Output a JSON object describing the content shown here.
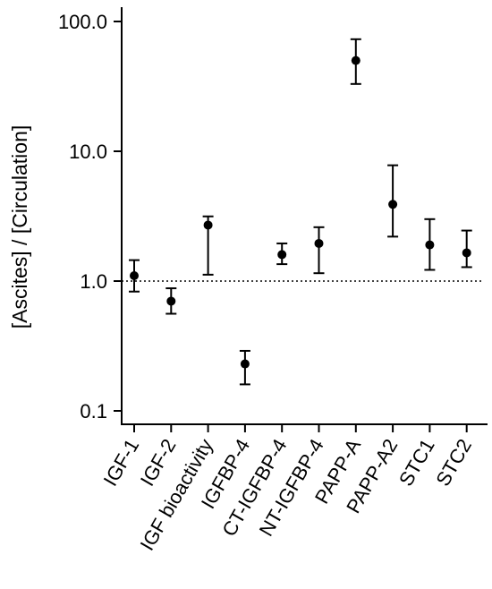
{
  "chart_data": {
    "type": "scatter",
    "title": "",
    "xlabel": "",
    "ylabel": "[Ascites] / [Circulation]",
    "yscale": "log",
    "ylim": [
      0.08,
      130
    ],
    "yticks": [
      0.1,
      1.0,
      10.0,
      100.0
    ],
    "ytick_labels": [
      "0.1",
      "1.0",
      "10.0",
      "100.0"
    ],
    "reference_line": {
      "y": 1.0,
      "style": "dotted"
    },
    "grid": false,
    "legend": "none",
    "categories": [
      "IGF-1",
      "IGF-2",
      "IGF bioactivity",
      "IGFBP-4",
      "CT-IGFBP-4",
      "NT-IGFBP-4",
      "PAPP-A",
      "PAPP-A2",
      "STC1",
      "STC2"
    ],
    "values": [
      1.1,
      0.7,
      2.7,
      0.23,
      1.6,
      1.95,
      50,
      3.9,
      1.9,
      1.65
    ],
    "lower": [
      0.83,
      0.56,
      1.12,
      0.16,
      1.35,
      1.15,
      33,
      2.2,
      1.22,
      1.28
    ],
    "upper": [
      1.45,
      0.88,
      3.15,
      0.29,
      1.95,
      2.6,
      73,
      7.8,
      3.0,
      2.45
    ],
    "point_color": "#000000"
  }
}
